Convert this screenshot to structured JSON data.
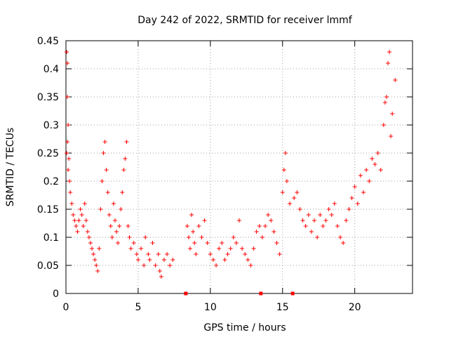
{
  "chart_data": {
    "type": "scatter",
    "title": "Day 242 of 2022, SRMTID for receiver lmmf",
    "xlabel": "GPS time / hours",
    "ylabel": "SRMTID / TECUs",
    "xlim": [
      0,
      24
    ],
    "ylim": [
      0,
      0.45
    ],
    "x_ticks": [
      0,
      5,
      10,
      15,
      20
    ],
    "x_tick_labels": [
      "0",
      "5",
      "10",
      "15",
      "20"
    ],
    "y_ticks": [
      0,
      0.05,
      0.1,
      0.15,
      0.2,
      0.25,
      0.3,
      0.35,
      0.4,
      0.45
    ],
    "y_tick_labels": [
      "0",
      "0.05",
      "0.1",
      "0.15",
      "0.2",
      "0.25",
      "0.3",
      "0.35",
      "0.4",
      "0.45"
    ],
    "grid": true,
    "marker": "+",
    "series_color": "#ff0000",
    "zero_markers_x": [
      8.3,
      13.5,
      15.7
    ],
    "series": [
      {
        "name": "SRMTID",
        "points": [
          [
            0.05,
            0.43
          ],
          [
            0.1,
            0.41
          ],
          [
            0.1,
            0.35
          ],
          [
            0.15,
            0.3
          ],
          [
            0.1,
            0.27
          ],
          [
            0.05,
            0.25
          ],
          [
            0.2,
            0.24
          ],
          [
            0.15,
            0.22
          ],
          [
            0.25,
            0.2
          ],
          [
            0.3,
            0.18
          ],
          [
            0.4,
            0.16
          ],
          [
            0.5,
            0.14
          ],
          [
            0.6,
            0.13
          ],
          [
            0.7,
            0.12
          ],
          [
            0.8,
            0.11
          ],
          [
            0.9,
            0.13
          ],
          [
            1.0,
            0.15
          ],
          [
            1.1,
            0.14
          ],
          [
            1.2,
            0.12
          ],
          [
            1.3,
            0.16
          ],
          [
            1.4,
            0.13
          ],
          [
            1.5,
            0.11
          ],
          [
            1.6,
            0.1
          ],
          [
            1.7,
            0.09
          ],
          [
            1.8,
            0.08
          ],
          [
            1.9,
            0.07
          ],
          [
            2.0,
            0.06
          ],
          [
            2.1,
            0.05
          ],
          [
            2.2,
            0.04
          ],
          [
            2.3,
            0.08
          ],
          [
            2.4,
            0.15
          ],
          [
            2.5,
            0.2
          ],
          [
            2.6,
            0.25
          ],
          [
            2.7,
            0.27
          ],
          [
            2.8,
            0.22
          ],
          [
            2.9,
            0.18
          ],
          [
            3.0,
            0.14
          ],
          [
            3.1,
            0.12
          ],
          [
            3.2,
            0.1
          ],
          [
            3.3,
            0.16
          ],
          [
            3.4,
            0.13
          ],
          [
            3.5,
            0.11
          ],
          [
            3.6,
            0.09
          ],
          [
            3.7,
            0.12
          ],
          [
            3.8,
            0.15
          ],
          [
            3.9,
            0.18
          ],
          [
            4.0,
            0.22
          ],
          [
            4.1,
            0.24
          ],
          [
            4.2,
            0.27
          ],
          [
            4.3,
            0.12
          ],
          [
            4.4,
            0.1
          ],
          [
            4.5,
            0.08
          ],
          [
            4.7,
            0.09
          ],
          [
            4.9,
            0.07
          ],
          [
            5.0,
            0.06
          ],
          [
            5.2,
            0.08
          ],
          [
            5.4,
            0.05
          ],
          [
            5.5,
            0.1
          ],
          [
            5.7,
            0.07
          ],
          [
            5.8,
            0.06
          ],
          [
            6.0,
            0.09
          ],
          [
            6.2,
            0.05
          ],
          [
            6.4,
            0.07
          ],
          [
            6.5,
            0.04
          ],
          [
            6.6,
            0.03
          ],
          [
            6.8,
            0.06
          ],
          [
            7.0,
            0.07
          ],
          [
            7.2,
            0.05
          ],
          [
            7.4,
            0.06
          ],
          [
            8.4,
            0.12
          ],
          [
            8.5,
            0.1
          ],
          [
            8.6,
            0.08
          ],
          [
            8.7,
            0.14
          ],
          [
            8.8,
            0.11
          ],
          [
            8.9,
            0.09
          ],
          [
            9.0,
            0.07
          ],
          [
            9.2,
            0.12
          ],
          [
            9.4,
            0.1
          ],
          [
            9.6,
            0.13
          ],
          [
            9.8,
            0.09
          ],
          [
            10.0,
            0.07
          ],
          [
            10.2,
            0.06
          ],
          [
            10.4,
            0.05
          ],
          [
            10.6,
            0.08
          ],
          [
            10.8,
            0.09
          ],
          [
            11.0,
            0.06
          ],
          [
            11.2,
            0.07
          ],
          [
            11.4,
            0.08
          ],
          [
            11.6,
            0.1
          ],
          [
            11.8,
            0.09
          ],
          [
            12.0,
            0.13
          ],
          [
            12.2,
            0.08
          ],
          [
            12.4,
            0.07
          ],
          [
            12.6,
            0.06
          ],
          [
            12.8,
            0.05
          ],
          [
            13.0,
            0.08
          ],
          [
            13.2,
            0.11
          ],
          [
            13.4,
            0.12
          ],
          [
            13.6,
            0.1
          ],
          [
            13.8,
            0.12
          ],
          [
            14.0,
            0.14
          ],
          [
            14.2,
            0.13
          ],
          [
            14.4,
            0.11
          ],
          [
            14.6,
            0.09
          ],
          [
            14.8,
            0.07
          ],
          [
            15.0,
            0.18
          ],
          [
            15.1,
            0.22
          ],
          [
            15.2,
            0.25
          ],
          [
            15.3,
            0.2
          ],
          [
            15.5,
            0.16
          ],
          [
            15.8,
            0.17
          ],
          [
            16.0,
            0.18
          ],
          [
            16.2,
            0.15
          ],
          [
            16.4,
            0.13
          ],
          [
            16.6,
            0.12
          ],
          [
            16.8,
            0.14
          ],
          [
            17.0,
            0.11
          ],
          [
            17.2,
            0.13
          ],
          [
            17.4,
            0.1
          ],
          [
            17.6,
            0.14
          ],
          [
            17.8,
            0.12
          ],
          [
            18.0,
            0.13
          ],
          [
            18.2,
            0.15
          ],
          [
            18.4,
            0.14
          ],
          [
            18.6,
            0.16
          ],
          [
            18.8,
            0.12
          ],
          [
            19.0,
            0.1
          ],
          [
            19.2,
            0.09
          ],
          [
            19.4,
            0.13
          ],
          [
            19.6,
            0.15
          ],
          [
            19.8,
            0.17
          ],
          [
            20.0,
            0.19
          ],
          [
            20.2,
            0.16
          ],
          [
            20.4,
            0.21
          ],
          [
            20.6,
            0.18
          ],
          [
            20.8,
            0.22
          ],
          [
            21.0,
            0.2
          ],
          [
            21.2,
            0.24
          ],
          [
            21.4,
            0.23
          ],
          [
            21.6,
            0.25
          ],
          [
            21.8,
            0.22
          ],
          [
            22.0,
            0.3
          ],
          [
            22.1,
            0.34
          ],
          [
            22.2,
            0.35
          ],
          [
            22.3,
            0.41
          ],
          [
            22.4,
            0.43
          ],
          [
            22.5,
            0.28
          ],
          [
            22.6,
            0.32
          ],
          [
            22.8,
            0.38
          ]
        ]
      }
    ]
  }
}
